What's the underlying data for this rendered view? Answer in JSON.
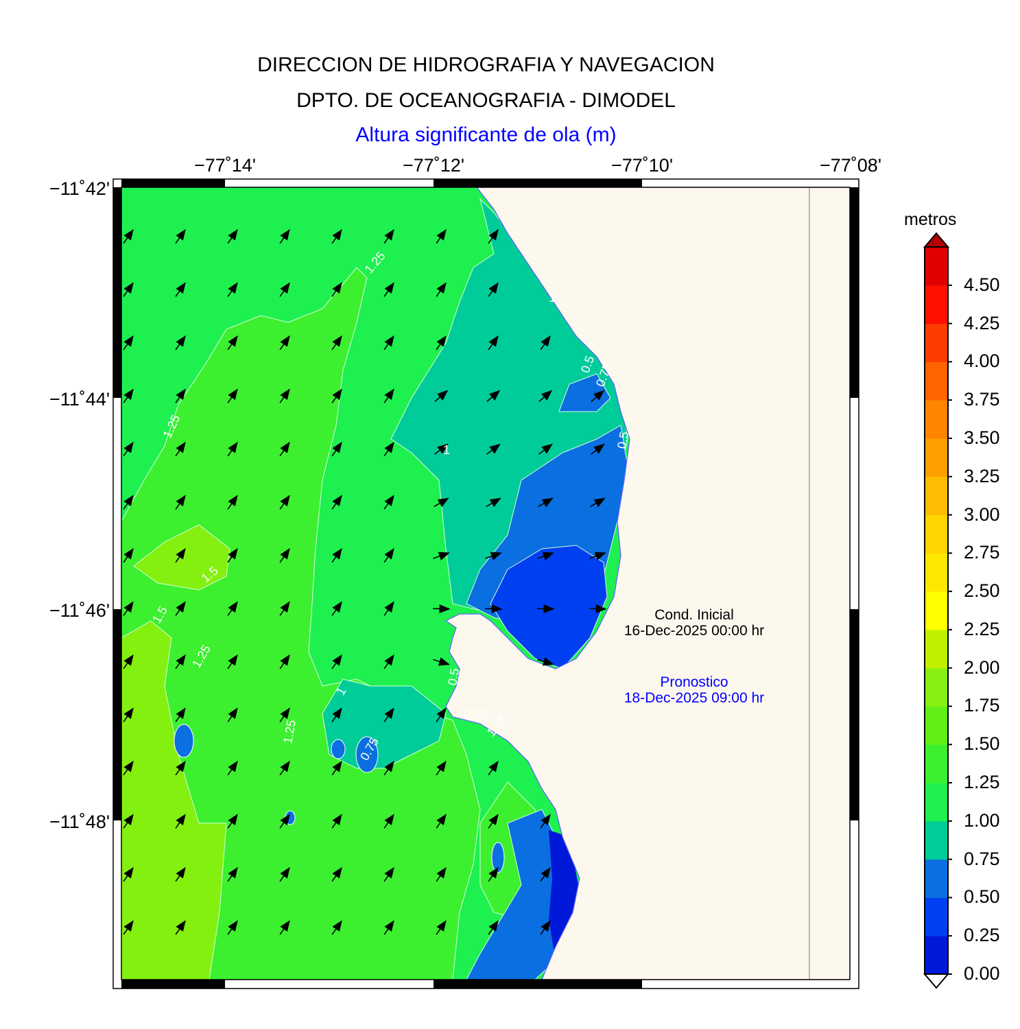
{
  "header": {
    "line1": "DIRECCION DE HIDROGRAFIA Y NAVEGACION",
    "line2": "DPTO. DE OCEANOGRAFIA - DIMODEL",
    "variable": "Altura significante de ola (m)"
  },
  "axes": {
    "lon_labels": [
      "−77˚14'",
      "−77˚12'",
      "−77˚10'",
      "−77˚08'"
    ],
    "lat_labels": [
      "−11˚42'",
      "−11˚44'",
      "−11˚46'",
      "−11˚48'"
    ]
  },
  "info": {
    "initial_label": "Cond. Inicial",
    "initial_date": "16-Dec-2025 00:00 hr",
    "forecast_label": "Pronostico",
    "forecast_date": "18-Dec-2025 09:00 hr"
  },
  "colorbar": {
    "unit": "metros",
    "ticks": [
      "0.00",
      "0.25",
      "0.50",
      "0.75",
      "1.00",
      "1.25",
      "1.50",
      "1.75",
      "2.00",
      "2.25",
      "2.50",
      "2.75",
      "3.00",
      "3.25",
      "3.50",
      "3.75",
      "4.00",
      "4.25",
      "4.50"
    ],
    "colors": [
      "#0018d8",
      "#0040f0",
      "#0a6fe0",
      "#00cc99",
      "#1ef050",
      "#3cf030",
      "#60f018",
      "#88f010",
      "#c0f000",
      "#ffff00",
      "#ffe800",
      "#ffd400",
      "#ffbc00",
      "#ffa000",
      "#ff8400",
      "#ff6400",
      "#ff3c00",
      "#ff1000",
      "#e00000",
      "#b40000"
    ]
  },
  "contour_labels": [
    "1.25",
    "1.25",
    "1.5",
    "1.5",
    "1.25",
    "1",
    "1",
    "0.75",
    "0.5",
    "1.25",
    "1",
    "0.5",
    "0.75",
    "1.25",
    "0.5",
    "0.75"
  ],
  "colors": {
    "land": "#fdf8ee",
    "title_blue": "#0000ff",
    "contour_line": "#ffffff"
  }
}
